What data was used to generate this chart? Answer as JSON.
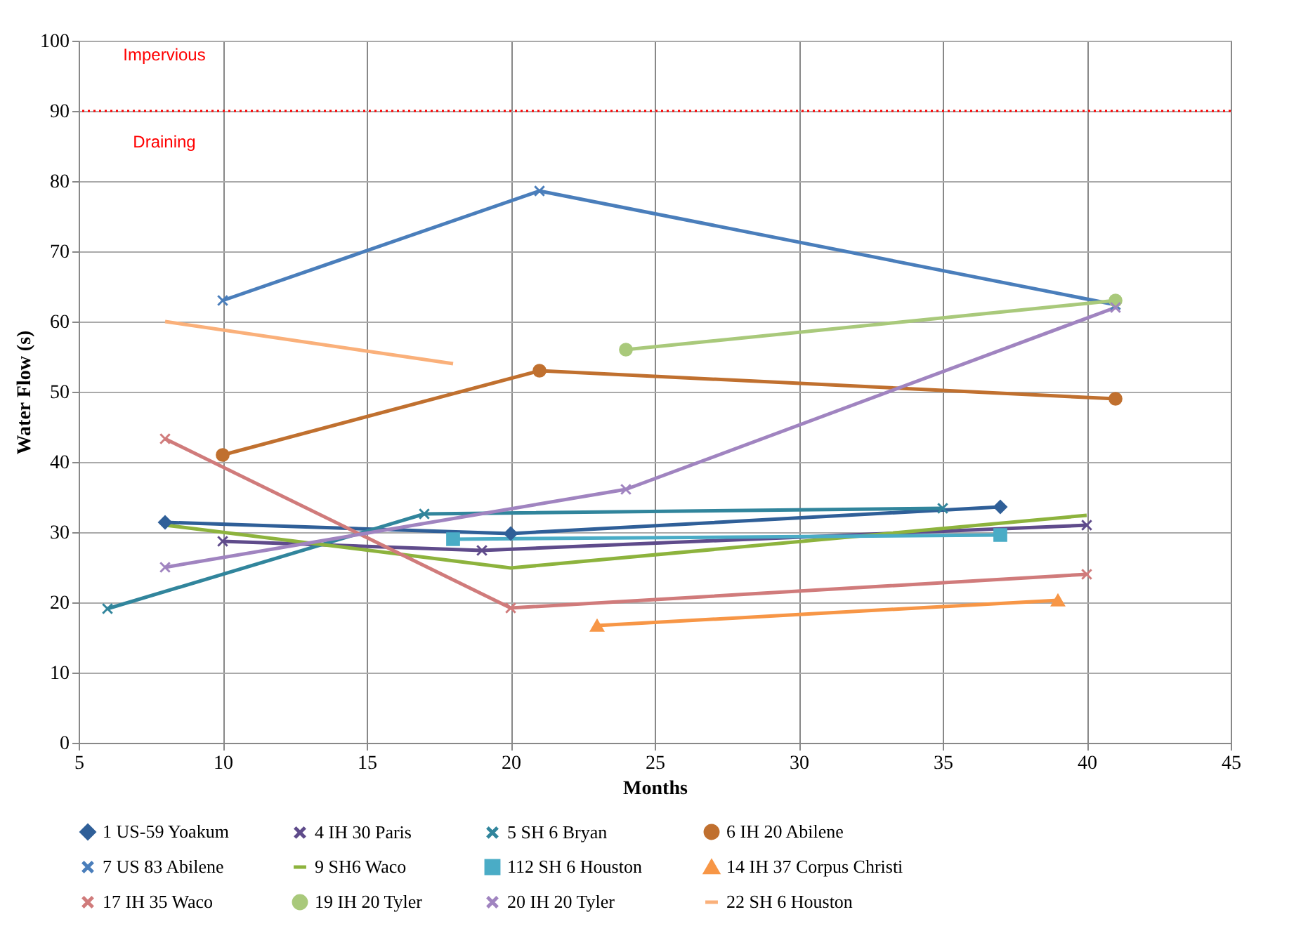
{
  "chart_data": {
    "type": "line",
    "xlabel": "Months",
    "ylabel": "Water Flow (s)",
    "xlim": [
      5,
      45
    ],
    "xticks": [
      5,
      10,
      15,
      20,
      25,
      30,
      35,
      40,
      45
    ],
    "ylim": [
      0,
      100
    ],
    "yticks": [
      0,
      10,
      20,
      30,
      40,
      50,
      60,
      70,
      80,
      90,
      100
    ],
    "grid": true,
    "legend": "bottom",
    "line_style": "solid",
    "ref_lines": [
      {
        "axis": "y",
        "value": 90,
        "color": "#ff0000",
        "line_style": "dotted"
      }
    ],
    "annotations": [
      "Impervious",
      "Draining"
    ],
    "series": [
      {
        "name": "1 US-59 Yoakum",
        "color": "#2f5f98",
        "marker": "diamond",
        "x": [
          8,
          20,
          37
        ],
        "values": [
          31.4,
          29.8,
          33.6
        ]
      },
      {
        "name": "4 IH 30 Paris",
        "color": "#5f4b8b",
        "marker": "cross",
        "x": [
          10,
          19,
          40
        ],
        "values": [
          28.7,
          27.4,
          31
        ]
      },
      {
        "name": "5 SH 6 Bryan",
        "color": "#31859c",
        "marker": "cross",
        "x": [
          6,
          17,
          35
        ],
        "values": [
          19.1,
          32.6,
          33.4
        ]
      },
      {
        "name": "6 IH 20 Abilene",
        "color": "#c0702f",
        "marker": "circle",
        "x": [
          10,
          21,
          41
        ],
        "values": [
          41,
          53,
          49
        ]
      },
      {
        "name": "7 US 83 Abilene",
        "color": "#4a7ebb",
        "marker": "cross",
        "x": [
          10,
          21,
          41
        ],
        "values": [
          63,
          78.6,
          62.4
        ]
      },
      {
        "name": "9 SH6 Waco",
        "color": "#8db33d",
        "marker": "none",
        "x": [
          8,
          20,
          40
        ],
        "values": [
          31,
          24.9,
          32.4
        ]
      },
      {
        "name": "112 SH 6 Houston",
        "color": "#4aacc6",
        "marker": "square",
        "x": [
          18,
          37
        ],
        "values": [
          29,
          29.6
        ]
      },
      {
        "name": "14 IH 37 Corpus Christi",
        "color": "#f79646",
        "marker": "triangle",
        "x": [
          23,
          39
        ],
        "values": [
          16.7,
          20.3
        ]
      },
      {
        "name": "17 IH 35 Waco",
        "color": "#d07b7b",
        "marker": "cross",
        "x": [
          8,
          20,
          40
        ],
        "values": [
          43.3,
          19.2,
          24
        ]
      },
      {
        "name": "19 IH 20 Tyler",
        "color": "#a9c97b",
        "marker": "circle",
        "x": [
          24,
          41
        ],
        "values": [
          56,
          63
        ]
      },
      {
        "name": "20 IH 20 Tyler",
        "color": "#a084c0",
        "marker": "cross",
        "x": [
          8,
          24,
          41
        ],
        "values": [
          25,
          36.1,
          62
        ]
      },
      {
        "name": "22 SH 6 Houston",
        "color": "#fab07a",
        "marker": "none",
        "x": [
          8,
          18
        ],
        "values": [
          60,
          54
        ]
      }
    ]
  }
}
